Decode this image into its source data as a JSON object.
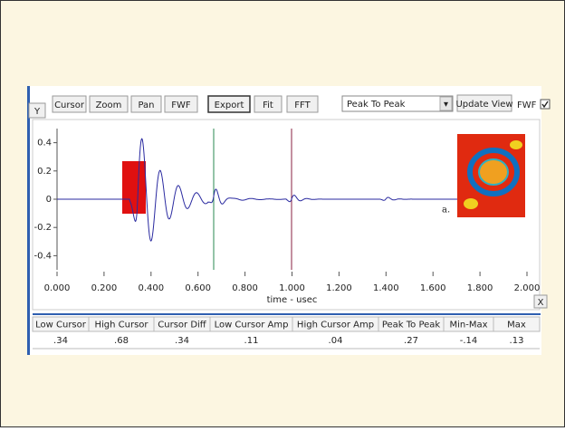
{
  "toolbar": {
    "y_button": "Y",
    "buttons": [
      "Cursor",
      "Zoom",
      "Pan",
      "FWF",
      "Export",
      "Fit",
      "FFT"
    ],
    "dropdown": "Peak To Peak",
    "update_button": "Update View",
    "checkbox_label": "FWF"
  },
  "plot": {
    "xlabel": "time - usec",
    "x_button": "X",
    "inset_label": "a.",
    "xlim": [
      0,
      2
    ],
    "ylim": [
      -0.5,
      0.5
    ],
    "xticks": [
      {
        "value": 0,
        "label": "0.000"
      },
      {
        "value": 0.2,
        "label": "0.200"
      },
      {
        "value": 0.4,
        "label": "0.400"
      },
      {
        "value": 0.6,
        "label": "0.600"
      },
      {
        "value": 0.8,
        "label": "0.800"
      },
      {
        "value": 1,
        "label": "1.000"
      },
      {
        "value": 1.2,
        "label": "1.200"
      },
      {
        "value": 1.4,
        "label": "1.400"
      },
      {
        "value": 1.6,
        "label": "1.600"
      },
      {
        "value": 1.8,
        "label": "1.800"
      },
      {
        "value": 2,
        "label": "2.000"
      }
    ],
    "yticks": [
      0.4,
      0.2,
      0,
      -0.2,
      -0.4
    ]
  },
  "table": {
    "headers": [
      "Low Cursor",
      "High Cursor",
      "Cursor Diff",
      "Low Cursor Amp",
      "High Cursor Amp",
      "Peak To Peak",
      "Min-Max",
      "Max"
    ],
    "rows": [
      [
        ".34",
        ".68",
        ".34",
        ".11",
        ".04",
        ".27",
        "-.14",
        ".13"
      ]
    ]
  }
}
